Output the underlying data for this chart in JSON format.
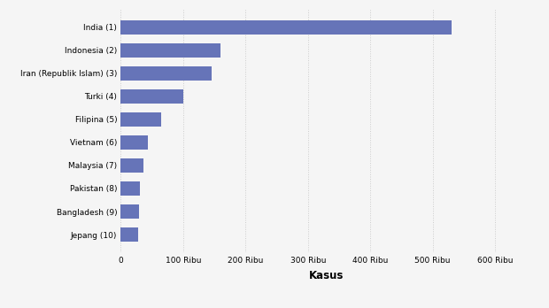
{
  "categories": [
    "Jepang (10)",
    "Bangladesh (9)",
    "Pakistan (8)",
    "Malaysia (7)",
    "Vietnam (6)",
    "Filipina (5)",
    "Turki (4)",
    "Iran (Republik Islam) (3)",
    "Indonesia (2)",
    "India (1)"
  ],
  "values": [
    28000,
    29000,
    30500,
    36000,
    43000,
    65000,
    100000,
    145000,
    160000,
    530000
  ],
  "bar_color": "#6674b8",
  "background_color": "#f5f5f5",
  "plot_bg_color": "#f5f5f5",
  "xlabel": "Kasus",
  "xlabel_fontsize": 8.5,
  "ylabel_fontsize": 7,
  "tick_fontsize": 6.5,
  "xlim": [
    0,
    660000
  ],
  "xticks": [
    0,
    100000,
    200000,
    300000,
    400000,
    500000,
    600000
  ],
  "xtick_labels": [
    "0",
    "100 Ribu",
    "200 Ribu",
    "300 Ribu",
    "400 Ribu",
    "500 Ribu",
    "600 Ribu"
  ],
  "bar_height": 0.6,
  "grid_color": "#cccccc",
  "grid_style": ":"
}
